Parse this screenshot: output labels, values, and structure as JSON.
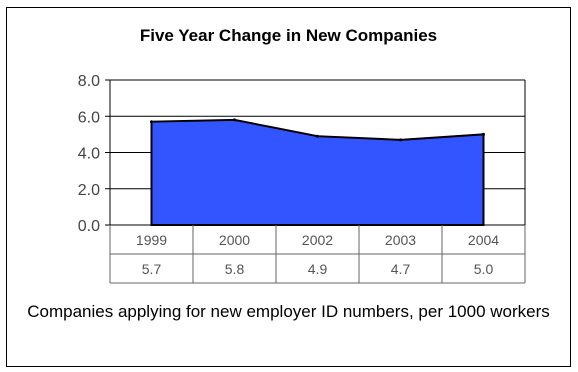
{
  "chart_data": {
    "type": "area",
    "title": "Five Year Change in New Companies",
    "categories": [
      "1999",
      "2000",
      "2002",
      "2003",
      "2004"
    ],
    "series": [
      {
        "values": [
          5.7,
          5.8,
          4.9,
          4.7,
          5.0
        ]
      }
    ],
    "data_labels": [
      "5.7",
      "5.8",
      "4.9",
      "4.7",
      "5.0"
    ],
    "ylim": [
      0,
      8
    ],
    "yticks": [
      "0.0",
      "2.0",
      "4.0",
      "6.0",
      "8.0"
    ],
    "grid": true,
    "data_table": true,
    "caption": "Companies applying for new employer ID numbers, per 1000 workers",
    "colors": {
      "area_fill": "#3355ff",
      "area_stroke": "#000000",
      "grid": "#000000"
    }
  }
}
